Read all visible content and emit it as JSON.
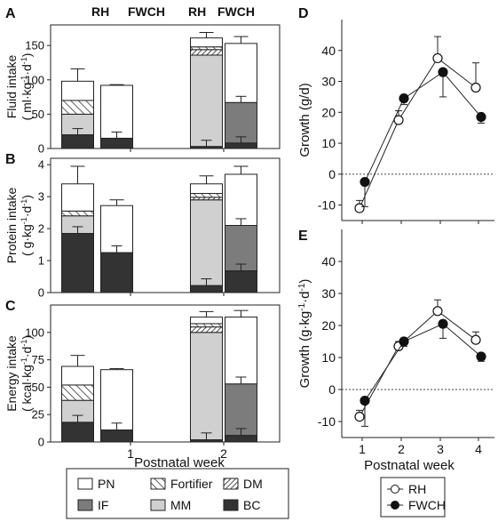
{
  "panel_letters": [
    "A",
    "B",
    "C",
    "D",
    "E"
  ],
  "group_headers": [
    "RH",
    "FWCH",
    "RH",
    "FWCH"
  ],
  "components": [
    {
      "key": "BC",
      "label": "BC",
      "fill": "#333333"
    },
    {
      "key": "MM",
      "label": "MM",
      "fill": "#d0d0d0"
    },
    {
      "key": "IF",
      "label": "IF",
      "fill": "#7c7c7c"
    },
    {
      "key": "DM",
      "label": "DM",
      "fill": "hatch-fine"
    },
    {
      "key": "Fortifier",
      "label": "Fortifier",
      "fill": "hatch-wide"
    },
    {
      "key": "PN",
      "label": "PN",
      "fill": "#ffffff"
    }
  ],
  "legend_order": [
    [
      "PN",
      "Fortifier",
      "DM"
    ],
    [
      "IF",
      "MM",
      "BC"
    ]
  ],
  "series_legend": [
    "RH",
    "FWCH"
  ],
  "chart_data": [
    {
      "panel": "A",
      "type": "bar",
      "stacked": true,
      "ylabel_main": "Fluid intake",
      "ylabel_units": "( ml·kg",
      "ylim": [
        0,
        180
      ],
      "yticks": [
        0,
        50,
        100,
        150
      ],
      "categories": [
        "1",
        "2"
      ],
      "groups": [
        "RH",
        "FWCH"
      ],
      "bars": [
        {
          "week": "1",
          "group": "RH",
          "BC": 20,
          "MM": 30,
          "IF": 0,
          "DM": 0,
          "Fortifier": 20,
          "PN": 28,
          "error": 18
        },
        {
          "week": "1",
          "group": "FWCH",
          "BC": 15,
          "MM": 0,
          "IF": 0,
          "DM": 0,
          "Fortifier": 0,
          "PN": 77,
          "error": 1
        },
        {
          "week": "2",
          "group": "RH",
          "BC": 3,
          "MM": 133,
          "IF": 0,
          "DM": 8,
          "Fortifier": 4,
          "PN": 13,
          "error": 8
        },
        {
          "week": "2",
          "group": "FWCH",
          "BC": 8,
          "MM": 0,
          "IF": 59,
          "DM": 0,
          "Fortifier": 0,
          "PN": 86,
          "error": 10
        }
      ]
    },
    {
      "panel": "B",
      "type": "bar",
      "stacked": true,
      "ylabel_main": "Protein intake",
      "ylabel_units": "( g·kg",
      "ylim": [
        0,
        4.2
      ],
      "yticks": [
        0,
        1,
        2,
        3,
        4
      ],
      "categories": [
        "1",
        "2"
      ],
      "groups": [
        "RH",
        "FWCH"
      ],
      "bars": [
        {
          "week": "1",
          "group": "RH",
          "BC": 1.85,
          "MM": 0.55,
          "IF": 0,
          "DM": 0,
          "Fortifier": 0.15,
          "PN": 0.85,
          "error": 0.55
        },
        {
          "week": "1",
          "group": "FWCH",
          "BC": 1.25,
          "MM": 0,
          "IF": 0,
          "DM": 0,
          "Fortifier": 0,
          "PN": 1.47,
          "error": 0.18
        },
        {
          "week": "2",
          "group": "RH",
          "BC": 0.22,
          "MM": 2.68,
          "IF": 0,
          "DM": 0.08,
          "Fortifier": 0.12,
          "PN": 0.3,
          "error": 0.25
        },
        {
          "week": "2",
          "group": "FWCH",
          "BC": 0.68,
          "MM": 0,
          "IF": 1.42,
          "DM": 0,
          "Fortifier": 0,
          "PN": 1.6,
          "error": 0.25
        }
      ]
    },
    {
      "panel": "C",
      "type": "bar",
      "stacked": true,
      "ylabel_main": "Energy intake",
      "ylabel_units": "( kcal·kg",
      "ylim": [
        0,
        125
      ],
      "yticks": [
        0,
        25,
        50,
        75,
        100
      ],
      "categories": [
        "1",
        "2"
      ],
      "groups": [
        "RH",
        "FWCH"
      ],
      "bars": [
        {
          "week": "1",
          "group": "RH",
          "BC": 18,
          "MM": 20,
          "IF": 0,
          "DM": 0,
          "Fortifier": 14,
          "PN": 17,
          "error": 10
        },
        {
          "week": "1",
          "group": "FWCH",
          "BC": 11,
          "MM": 0,
          "IF": 0,
          "DM": 0,
          "Fortifier": 0,
          "PN": 55,
          "error": 1
        },
        {
          "week": "2",
          "group": "RH",
          "BC": 2,
          "MM": 98,
          "IF": 0,
          "DM": 5,
          "Fortifier": 3,
          "PN": 6,
          "error": 5
        },
        {
          "week": "2",
          "group": "FWCH",
          "BC": 6,
          "MM": 0,
          "IF": 47,
          "DM": 0,
          "Fortifier": 0,
          "PN": 61,
          "error": 6
        }
      ]
    },
    {
      "panel": "D",
      "type": "line",
      "ylabel": "Growth (g/d)",
      "xlabel": "Postnatal week",
      "x": [
        1,
        2,
        3,
        4
      ],
      "ylim": [
        -15,
        50
      ],
      "yticks": [
        -10,
        0,
        10,
        20,
        30,
        40
      ],
      "series": [
        {
          "name": "RH",
          "marker": "open",
          "values": [
            -11,
            17.5,
            37.5,
            28
          ],
          "errors": [
            2.5,
            3,
            7,
            8
          ]
        },
        {
          "name": "FWCH",
          "marker": "filled",
          "values": [
            -2.5,
            24.5,
            33,
            18.5
          ],
          "errors": [
            8,
            2,
            8,
            2
          ]
        }
      ]
    },
    {
      "panel": "E",
      "type": "line",
      "ylabel": "Growth (g·kg",
      "xlabel": "Postnatal week",
      "x": [
        1,
        2,
        3,
        4
      ],
      "ylim": [
        -15,
        50
      ],
      "yticks": [
        -10,
        0,
        10,
        20,
        30,
        40
      ],
      "series": [
        {
          "name": "RH",
          "marker": "open",
          "values": [
            -8.5,
            13.5,
            24.5,
            15.5
          ],
          "errors": [
            2,
            1.5,
            3.5,
            2.5
          ]
        },
        {
          "name": "FWCH",
          "marker": "filled",
          "values": [
            -3.5,
            15,
            20.5,
            10.3
          ],
          "errors": [
            8,
            1.5,
            4.5,
            1.5
          ]
        }
      ]
    }
  ],
  "bar_xlabel": "Postnatal week",
  "unit_sup": [
    "-1",
    "-1"
  ]
}
